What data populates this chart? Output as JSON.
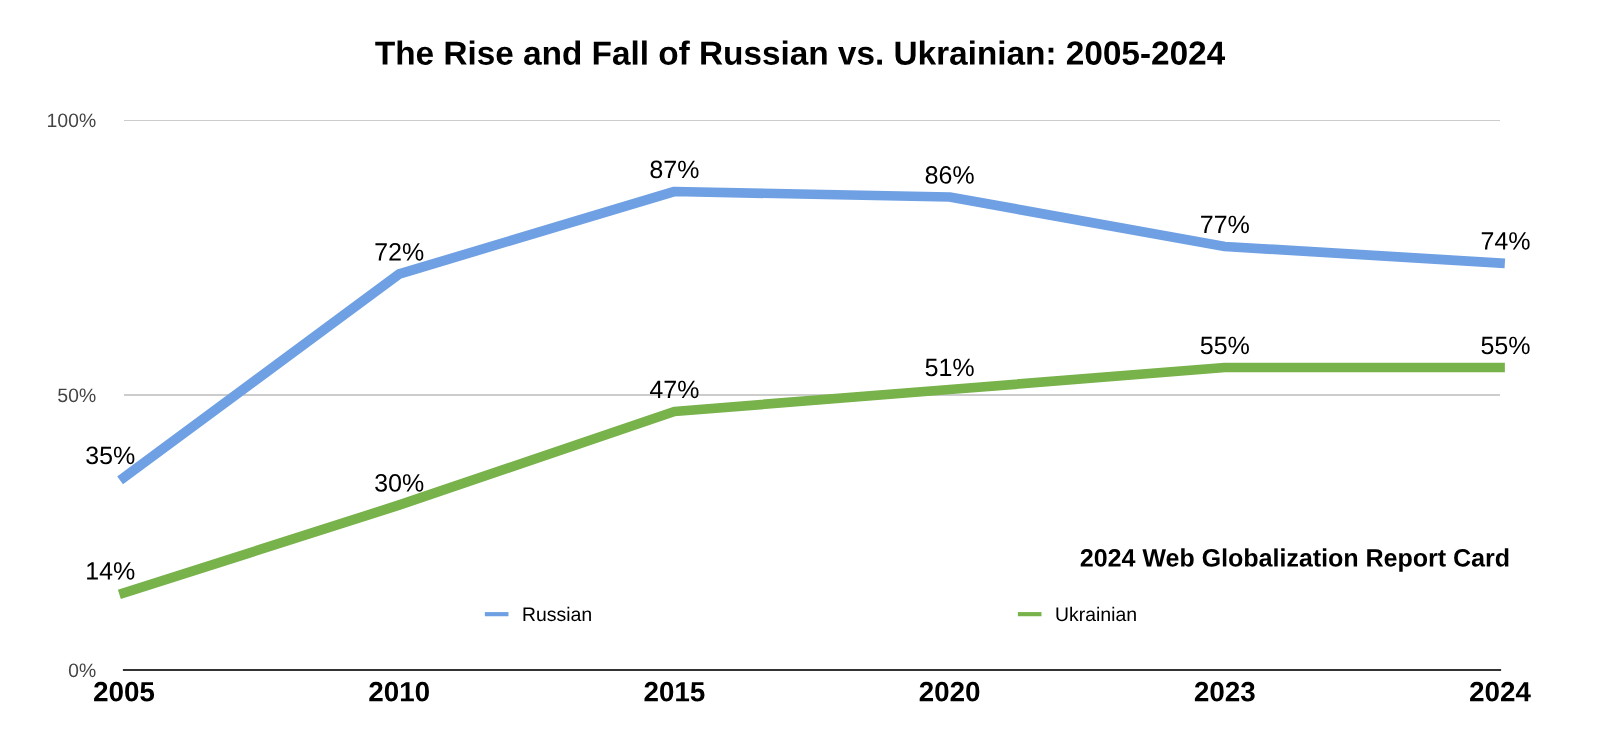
{
  "chart_data": {
    "type": "line",
    "title": "The Rise and Fall of Russian vs. Ukrainian: 2005-2024",
    "categories": [
      "2005",
      "2010",
      "2015",
      "2020",
      "2023",
      "2024"
    ],
    "series": [
      {
        "name": "Russian",
        "color": "#6fa0e3",
        "values": [
          35,
          72,
          87,
          86,
          77,
          74
        ],
        "value_labels": [
          "35%",
          "72%",
          "87%",
          "86%",
          "77%",
          "74%"
        ]
      },
      {
        "name": "Ukrainian",
        "color": "#78b24a",
        "values": [
          14,
          30,
          47,
          51,
          55,
          55
        ],
        "value_labels": [
          "14%",
          "30%",
          "47%",
          "51%",
          "55%",
          "55%"
        ]
      }
    ],
    "ylim": [
      0,
      100
    ],
    "yticks": [
      {
        "value": 0,
        "label": "0%"
      },
      {
        "value": 50,
        "label": "50%"
      },
      {
        "value": 100,
        "label": "100%"
      }
    ],
    "grid": "y",
    "legend": "bottom",
    "marker": "none",
    "line_style": "solid",
    "annotations": [
      "2024 Web Globalization Report Card"
    ]
  }
}
